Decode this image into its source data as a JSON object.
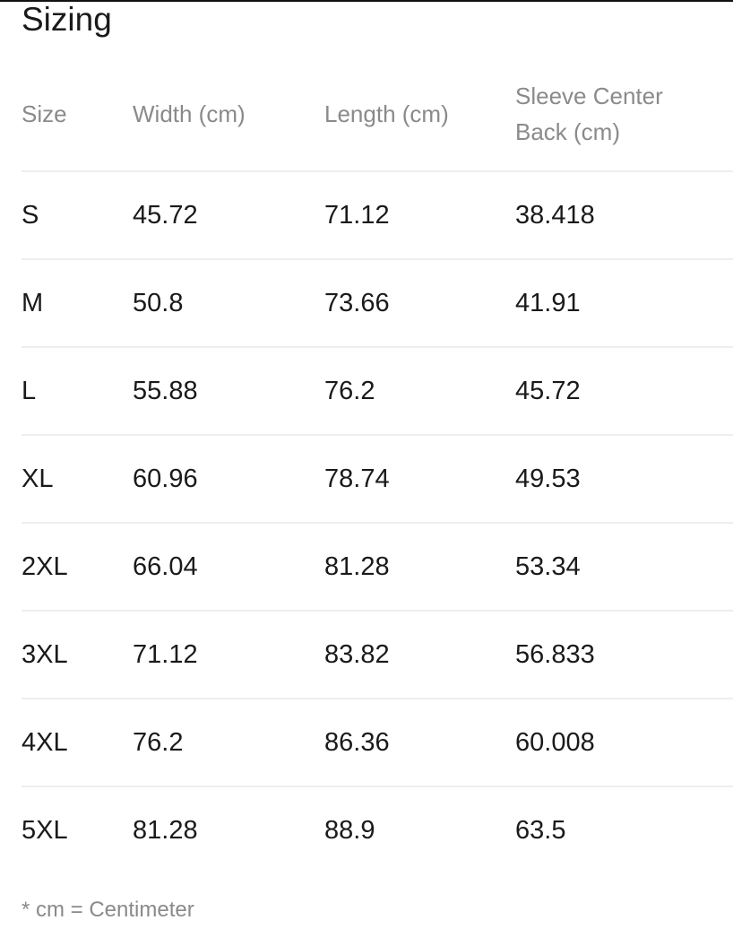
{
  "title": "Sizing",
  "columns": [
    "Size",
    "Width (cm)",
    "Length (cm)",
    "Sleeve Center Back (cm)"
  ],
  "rows": [
    [
      "S",
      "45.72",
      "71.12",
      "38.418"
    ],
    [
      "M",
      "50.8",
      "73.66",
      "41.91"
    ],
    [
      "L",
      "55.88",
      "76.2",
      "45.72"
    ],
    [
      "XL",
      "60.96",
      "78.74",
      "49.53"
    ],
    [
      "2XL",
      "66.04",
      "81.28",
      "53.34"
    ],
    [
      "3XL",
      "71.12",
      "83.82",
      "56.833"
    ],
    [
      "4XL",
      "76.2",
      "86.36",
      "60.008"
    ],
    [
      "5XL",
      "81.28",
      "88.9",
      "63.5"
    ]
  ],
  "footnote": "* cm = Centimeter"
}
